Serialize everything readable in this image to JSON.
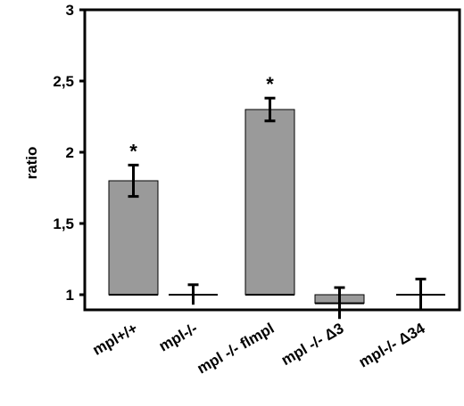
{
  "chart_data": {
    "type": "bar",
    "title": "",
    "xlabel": "",
    "ylabel": "ratio",
    "ylim": [
      1,
      3
    ],
    "yticks": [
      "1",
      "1,5",
      "2",
      "2,5",
      "3"
    ],
    "ytick_values": [
      1,
      1.5,
      2,
      2.5,
      3
    ],
    "categories": [
      "mpl+/+",
      "mpl-/-",
      "mpl -/- flmpl",
      "mpl  -/- Δ3",
      "mpl-/- Δ34"
    ],
    "values": [
      1.8,
      1.0,
      2.3,
      0.94,
      1.0
    ],
    "errors": [
      0.11,
      0.07,
      0.08,
      0.11,
      0.11
    ],
    "significance": [
      "*",
      "",
      "*",
      "",
      ""
    ],
    "bar_color": "#9a9a9a",
    "axis_color": "#000000",
    "grid": false,
    "legend": "none"
  }
}
